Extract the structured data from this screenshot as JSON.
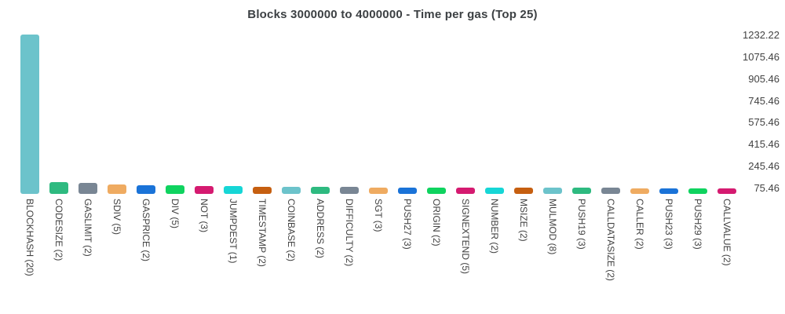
{
  "title": "Blocks 3000000 to 4000000 - Time per gas (Top 25)",
  "colors": {
    "background": "#ffffff",
    "title_text": "#3c4043",
    "axis_text": "#424242"
  },
  "chart_data": {
    "type": "bar",
    "title": "Blocks 3000000 to 4000000 - Time per gas (Top 25)",
    "xlabel": "",
    "ylabel": "",
    "grid": false,
    "legend": "none",
    "y_axis_side": "right",
    "y_ticks": [
      "1232.22",
      "1075.46",
      "905.46",
      "745.46",
      "575.46",
      "415.46",
      "245.46",
      "75.46"
    ],
    "ylim": [
      75.46,
      1232.22
    ],
    "categories": [
      "BLOCKHASH (20)",
      "CODESIZE (2)",
      "GASLIMIT (2)",
      "SDIV (5)",
      "GASPRICE (2)",
      "DIV (5)",
      "NOT (3)",
      "JUMPDEST (1)",
      "TIMESTAMP (2)",
      "COINBASE (2)",
      "ADDRESS (2)",
      "DIFFICULTY (2)",
      "SGT (3)",
      "PUSH27 (3)",
      "ORIGIN (2)",
      "SIGNEXTEND (5)",
      "NUMBER (2)",
      "MSIZE (2)",
      "MULMOD (8)",
      "PUSH19 (3)",
      "CALLDATASIZE (2)",
      "CALLER (2)",
      "PUSH23 (3)",
      "PUSH29 (3)",
      "CALLVALUE (2)"
    ],
    "values": [
      1232.22,
      125,
      117,
      104,
      99,
      97,
      95,
      92,
      90,
      88,
      86,
      85,
      84,
      83,
      82,
      81,
      80.5,
      80,
      79.5,
      79,
      78.5,
      78,
      77.5,
      76.5,
      75.46
    ],
    "palette": [
      "#6cc3cb",
      "#2eba80",
      "#798694",
      "#efab61",
      "#1a73d8",
      "#0fd35f",
      "#d51a70",
      "#16d6d6",
      "#c65f10"
    ]
  }
}
